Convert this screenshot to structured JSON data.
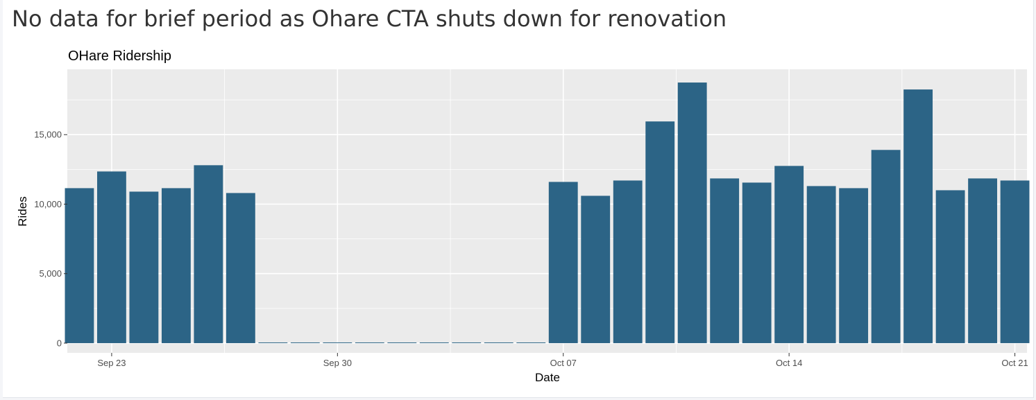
{
  "page": {
    "title": "No data for brief period as Ohare CTA shuts down for renovation"
  },
  "chart_data": {
    "type": "bar",
    "title": "OHare Ridership",
    "xlabel": "Date",
    "ylabel": "Rides",
    "ylim": [
      -700,
      19700
    ],
    "yticks": [
      0,
      5000,
      10000,
      15000
    ],
    "ytick_labels": [
      "0",
      "5,000",
      "10,000",
      "15,000"
    ],
    "xticks": [
      1,
      8,
      15,
      22,
      29
    ],
    "xtick_labels": [
      "Sep 23",
      "Sep 30",
      "Oct 07",
      "Oct 14",
      "Oct 21"
    ],
    "categories": [
      "Sep 22",
      "Sep 23",
      "Sep 24",
      "Sep 25",
      "Sep 26",
      "Sep 27",
      "Sep 28",
      "Sep 29",
      "Sep 30",
      "Oct 01",
      "Oct 02",
      "Oct 03",
      "Oct 04",
      "Oct 05",
      "Oct 06",
      "Oct 07",
      "Oct 08",
      "Oct 09",
      "Oct 10",
      "Oct 11",
      "Oct 12",
      "Oct 13",
      "Oct 14",
      "Oct 15",
      "Oct 16",
      "Oct 17",
      "Oct 18",
      "Oct 19",
      "Oct 20",
      "Oct 21"
    ],
    "values": [
      11150,
      12350,
      10900,
      11150,
      12800,
      10800,
      50,
      50,
      50,
      50,
      50,
      50,
      50,
      50,
      50,
      11600,
      10600,
      11700,
      15950,
      18750,
      11850,
      11550,
      12750,
      11300,
      11150,
      13900,
      18250,
      11000,
      11850,
      11700
    ],
    "bar_color": "#2c6486",
    "panel_color": "#ebebeb",
    "grid": true
  }
}
